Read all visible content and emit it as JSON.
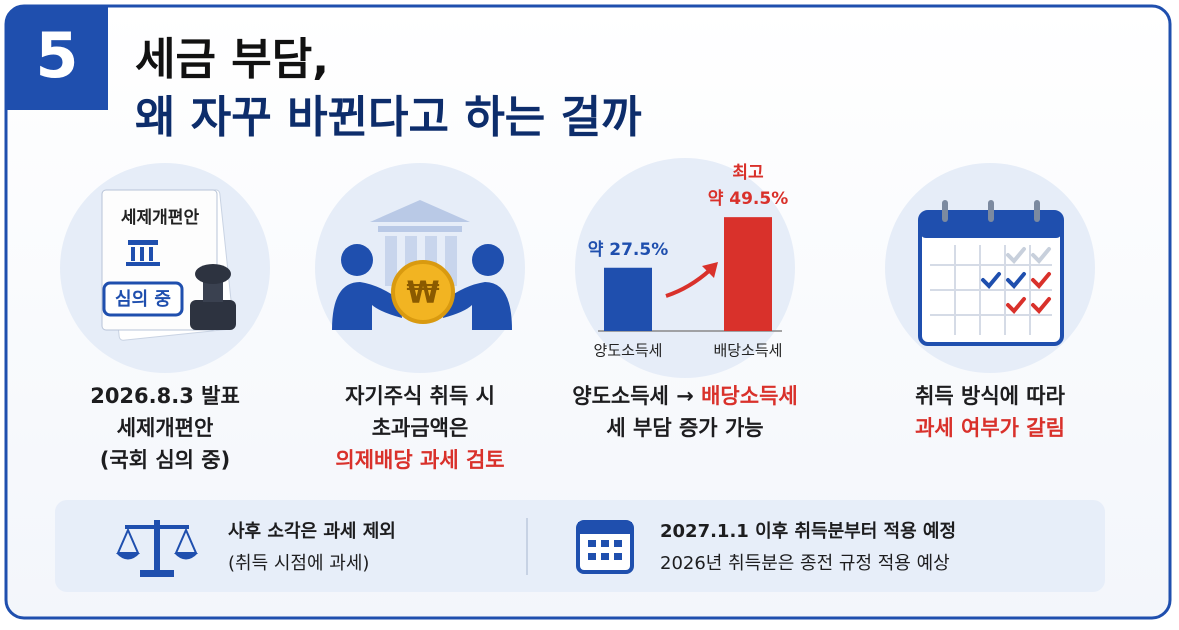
{
  "badge": "5",
  "title": [
    "세금 부담,",
    "왜 자꾸 바뀐다고 하는 걸까"
  ],
  "cards": [
    {
      "icon_texts": [
        "세제개편안",
        "심의 중"
      ],
      "caption": [
        [
          {
            "text": "2026.8.3 발표"
          }
        ],
        [
          {
            "text": "세제개편안"
          }
        ],
        [
          {
            "text": "(국회 심의 중)"
          }
        ]
      ]
    },
    {
      "icon_texts": [
        "₩"
      ],
      "caption": [
        [
          {
            "text": "자기주식 취득 시"
          }
        ],
        [
          {
            "text": "초과금액은"
          }
        ],
        [
          {
            "text": "의제배당 과세 검토",
            "emphasis": true
          }
        ]
      ]
    },
    {
      "chart": {
        "categories": [
          "양도소득세",
          "배당소득세"
        ],
        "values": [
          27.5,
          49.5
        ],
        "value_labels": [
          "약 27.5%",
          "약 49.5%"
        ],
        "colors": [
          "#1f4fae",
          "#d9312b"
        ],
        "note": "최고"
      },
      "caption": [
        [
          {
            "text": "양도소득세 → "
          },
          {
            "text": "배당소득세",
            "emphasis": true
          }
        ],
        [
          {
            "text": "세 부담 증가 가능"
          }
        ]
      ]
    },
    {
      "caption": [
        [
          {
            "text": "취득 방식에 따라"
          }
        ],
        [
          {
            "text": "과세 여부가 갈림",
            "emphasis": true
          }
        ]
      ]
    }
  ],
  "footer": [
    {
      "lines": [
        "사후 소각은 과세 제외",
        "(취득 시점에 과세)"
      ]
    },
    {
      "lines": [
        "2027.1.1 이후 취득분부터 적용 예정",
        "2026년 취득분은 종전 규정 적용 예상"
      ]
    }
  ]
}
